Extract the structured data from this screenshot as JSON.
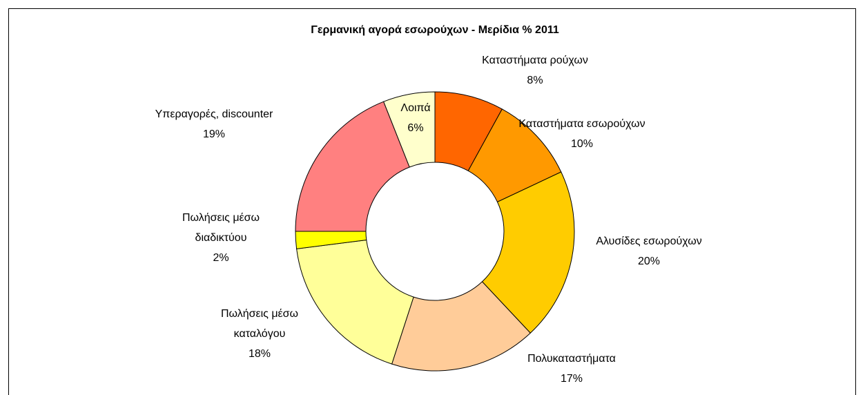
{
  "chart_data": {
    "type": "donut",
    "title": "Γερμανική αγορά εσωρούχων - Μερίδια % 2011",
    "categories": [
      "Καταστήματα ρούχων",
      "Καταστήματα εσωρούχων",
      "Αλυσίδες εσωρούχων",
      "Πολυκαταστήματα",
      "Πωλήσεις μέσω καταλόγου",
      "Πωλήσεις μέσω διαδικτύου",
      "Υπεραγορές, discounter",
      "Λοιπά"
    ],
    "values": [
      8,
      10,
      20,
      17,
      18,
      2,
      19,
      6
    ],
    "value_labels": [
      "8%",
      "10%",
      "20%",
      "17%",
      "18%",
      "2%",
      "19%",
      "6%"
    ],
    "colors": [
      "#FF6600",
      "#FF9900",
      "#FFCC00",
      "#FFCC99",
      "#FFFF99",
      "#FFFF00",
      "#FF8080",
      "#FFFFCC"
    ]
  }
}
